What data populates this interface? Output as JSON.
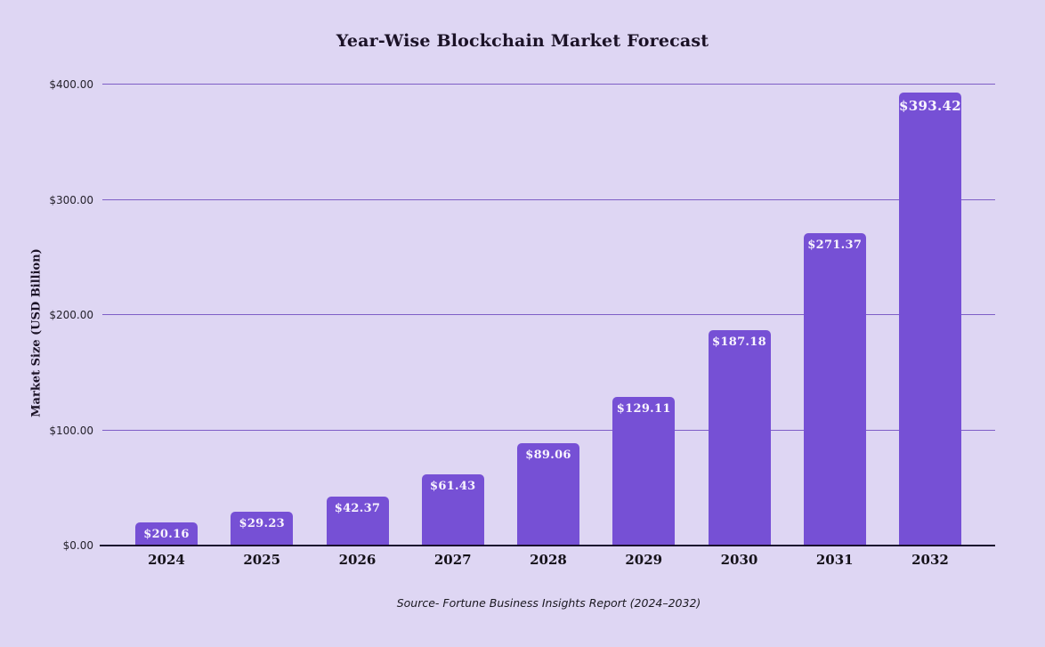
{
  "source_note": "Source- Fortune Business Insights Report (2024–2032)",
  "chart_data": {
    "type": "bar",
    "title": "Year-Wise Blockchain Market Forecast",
    "xlabel": "",
    "ylabel": "Market Size (USD Billion)",
    "categories": [
      "2024",
      "2025",
      "2026",
      "2027",
      "2028",
      "2029",
      "2030",
      "2031",
      "2032"
    ],
    "values": [
      20.16,
      29.23,
      42.37,
      61.43,
      89.06,
      129.11,
      187.18,
      271.37,
      393.42
    ],
    "bar_labels": [
      "$20.16",
      "$29.23",
      "$42.37",
      "$61.43",
      "$89.06",
      "$129.11",
      "$187.18",
      "$271.37",
      "$393.42"
    ],
    "ylim": [
      0,
      400
    ],
    "y_tick_values": [
      0,
      100,
      200,
      300,
      400
    ],
    "y_tick_labels": [
      "$0.00",
      "$100.00",
      "$200.00",
      "$300.00",
      "$400.00"
    ],
    "grid": "horizontal-only",
    "legend": "none",
    "colors": {
      "background": "#ded6f3",
      "bar": "#7650d5",
      "gridline": "#7e5ec6",
      "axis_line": "#1a0f2e",
      "bar_label_text": "#f8f4fe",
      "title_text": "#1b1226"
    }
  }
}
